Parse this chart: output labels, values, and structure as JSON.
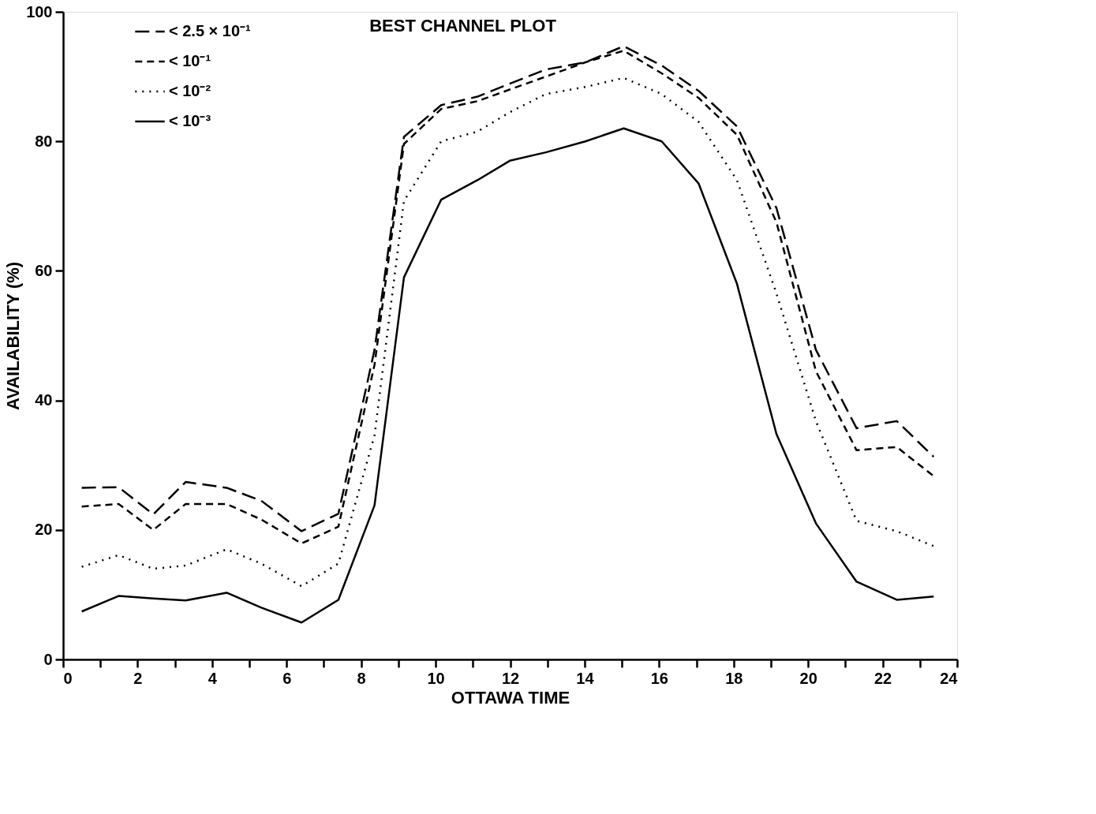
{
  "chart_data": {
    "type": "line",
    "title": "BEST CHANNEL PLOT",
    "xlabel": "OTTAWA TIME",
    "ylabel": "AVAILABILITY (%)",
    "x": [
      0.5,
      1.49,
      2.42,
      3.29,
      4.39,
      5.32,
      6.4,
      7.39,
      8.36,
      9.15,
      10.15,
      11.12,
      11.99,
      12.96,
      14.02,
      15.05,
      16.07,
      17.06,
      18.09,
      19.15,
      20.21,
      21.3,
      22.38,
      23.37
    ],
    "series": [
      {
        "name": "< 2.5 × 10⁻¹",
        "color": "#000000",
        "line_style": "dashed",
        "values": [
          26.5,
          26.6,
          22.4,
          27.4,
          26.5,
          24.5,
          19.8,
          22.5,
          47.8,
          80.7,
          85.6,
          86.9,
          88.9,
          91.1,
          92.2,
          94.7,
          91.7,
          87.8,
          82.3,
          69.7,
          47.8,
          35.7,
          36.8,
          31.3
        ]
      },
      {
        "name": "< 10⁻¹",
        "color": "#000000",
        "line_style": "dashed",
        "values": [
          23.6,
          24,
          20,
          24,
          24,
          21.6,
          17.9,
          20.5,
          45.5,
          79.6,
          85,
          86.2,
          88,
          90,
          92.2,
          94,
          90.5,
          86.7,
          81,
          67.5,
          44.5,
          32.3,
          32.8,
          28.3
        ]
      },
      {
        "name": "< 10⁻²",
        "color": "#000000",
        "line_style": "dotted",
        "values": [
          14.3,
          16.1,
          14,
          14.5,
          17,
          14.8,
          11.3,
          14.8,
          34.6,
          70.8,
          80,
          81.5,
          84.5,
          87.3,
          88.4,
          89.8,
          87.3,
          83,
          74,
          56.5,
          36.8,
          21.4,
          19.8,
          17.5
        ]
      },
      {
        "name": "< 10⁻³",
        "color": "#000000",
        "line_style": "solid",
        "values": [
          7.4,
          9.8,
          9.4,
          9.1,
          10.3,
          8,
          5.7,
          9.2,
          23.8,
          59,
          71,
          74,
          77,
          78.3,
          80,
          82,
          80,
          73.5,
          58,
          34.8,
          21,
          12,
          9.2,
          9.7
        ]
      }
    ],
    "xlim": [
      0,
      24
    ],
    "ylim": [
      0,
      100
    ],
    "xticks": [
      0,
      {
        "value": 1,
        "label": null
      },
      2,
      {
        "value": 3,
        "label": null
      },
      4,
      {
        "value": 5,
        "label": null
      },
      6,
      {
        "value": 7,
        "label": null
      },
      8,
      {
        "value": 9,
        "label": null
      },
      10,
      {
        "value": 11,
        "label": null
      },
      12,
      {
        "value": 13,
        "label": null
      },
      14,
      {
        "value": 15,
        "label": null
      },
      16,
      {
        "value": 17,
        "label": null
      },
      18,
      {
        "value": 19,
        "label": null
      },
      20,
      {
        "value": 21,
        "label": null
      },
      22,
      {
        "value": 23,
        "label": null
      },
      24
    ],
    "yticks": [
      0,
      20,
      40,
      60,
      80,
      100
    ],
    "grid": false,
    "legend": "top left",
    "marker": "none"
  }
}
